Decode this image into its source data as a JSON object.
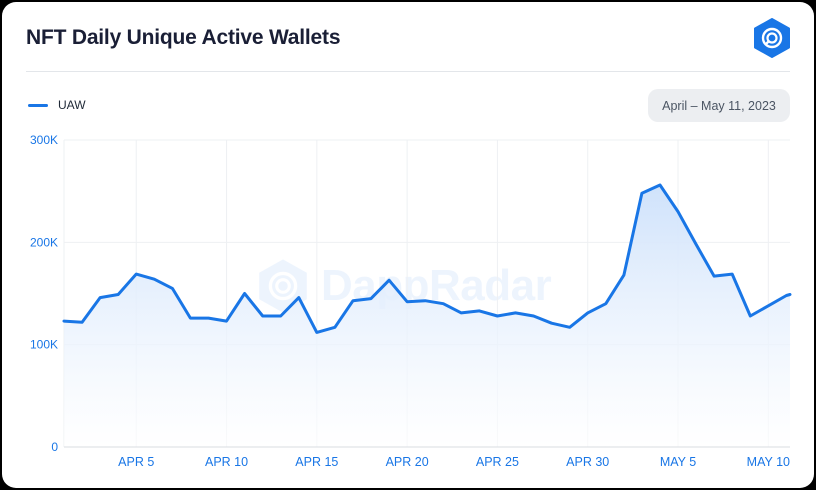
{
  "header": {
    "title": "NFT Daily Unique Active Wallets",
    "logo_icon": "dappradar-logo-icon",
    "date_range": "April – May 11, 2023"
  },
  "watermark": {
    "text": "DappRadar"
  },
  "colors": {
    "line": "#1976e6",
    "fill_top": "#cfe2fb",
    "fill_bottom": "#ffffff",
    "grid": "#eef0f3",
    "accent": "#1976e6"
  },
  "chart_data": {
    "type": "area",
    "x_tick_labels": [
      "APR 5",
      "APR 10",
      "APR 15",
      "APR 20",
      "APR 25",
      "APR 30",
      "MAY 5",
      "MAY 10"
    ],
    "x_tick_days": [
      5,
      10,
      15,
      20,
      25,
      30,
      35,
      40
    ],
    "y_tick_labels": [
      "0",
      "100K",
      "200K",
      "300K"
    ],
    "y_tick_values": [
      0,
      100000,
      200000,
      300000
    ],
    "ylim": [
      0,
      300000
    ],
    "xlim_days": [
      1,
      41.2
    ],
    "grid": true,
    "legend_position": "top-left",
    "series": [
      {
        "name": "UAW",
        "x_days": [
          1,
          2,
          3,
          4,
          5,
          6,
          7,
          8,
          9,
          10,
          11,
          12,
          13,
          14,
          15,
          16,
          17,
          18,
          19,
          20,
          21,
          22,
          23,
          24,
          25,
          26,
          27,
          28,
          29,
          30,
          31,
          32,
          33,
          34,
          35,
          36,
          37,
          38,
          39,
          40,
          41,
          41.2
        ],
        "values": [
          123000,
          122000,
          146000,
          149000,
          169000,
          164000,
          155000,
          126000,
          126000,
          123000,
          150000,
          128000,
          128000,
          146000,
          112000,
          117000,
          143000,
          145000,
          163000,
          142000,
          143000,
          140000,
          131000,
          133000,
          128000,
          131000,
          128000,
          121000,
          117000,
          131000,
          140000,
          168000,
          248000,
          256000,
          230000,
          198000,
          167000,
          169000,
          128000,
          138000,
          148000,
          149000
        ]
      }
    ]
  }
}
